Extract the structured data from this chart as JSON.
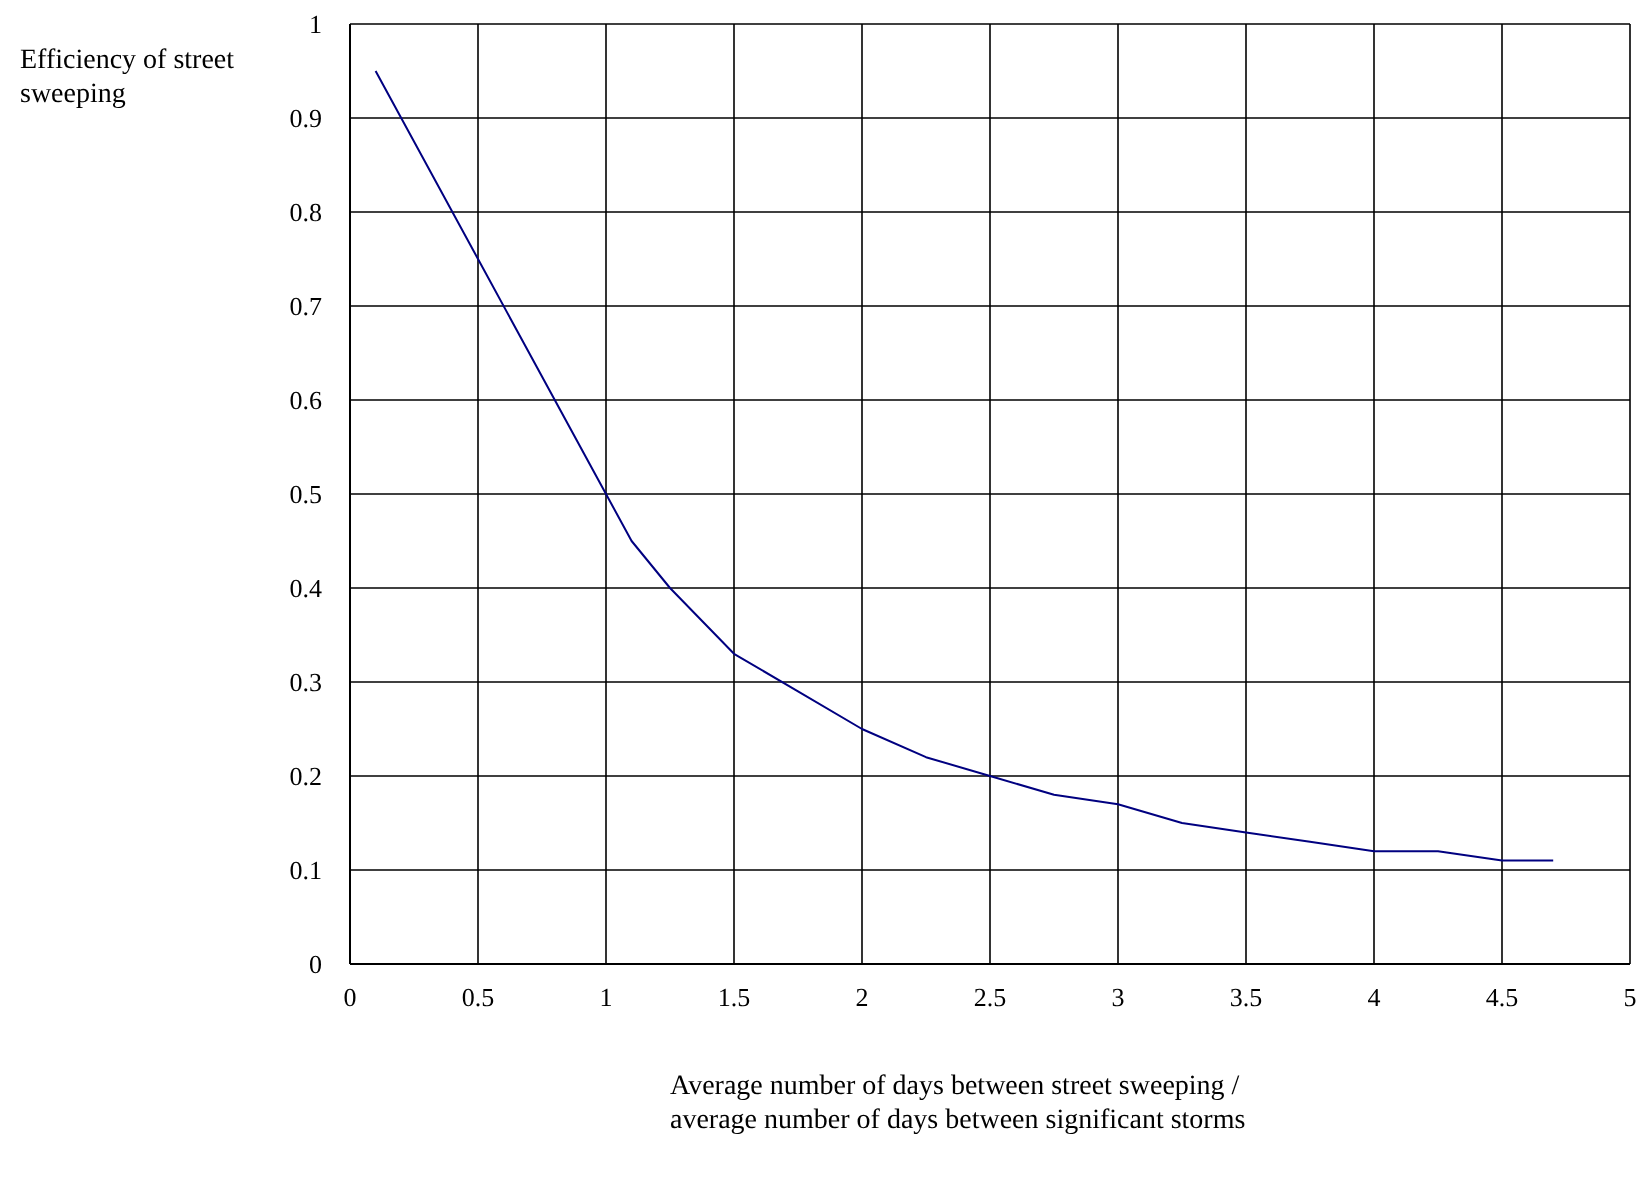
{
  "chart_data": {
    "type": "line",
    "xlabel": "Average number of days between street sweeping / average number of days between significant storms",
    "ylabel": "Efficiency of street sweeping",
    "series": [
      {
        "color": "#000080",
        "x": [
          0.1,
          0.5,
          1.0,
          1.1,
          1.25,
          1.5,
          1.75,
          2.0,
          2.25,
          2.5,
          2.75,
          3.0,
          3.25,
          3.5,
          3.75,
          4.0,
          4.25,
          4.5,
          4.7
        ],
        "values": [
          0.95,
          0.75,
          0.5,
          0.45,
          0.4,
          0.33,
          0.29,
          0.25,
          0.22,
          0.2,
          0.18,
          0.17,
          0.15,
          0.14,
          0.13,
          0.12,
          0.12,
          0.11,
          0.11
        ]
      }
    ],
    "xlim": [
      0,
      5
    ],
    "xticks": [
      0,
      0.5,
      1,
      1.5,
      2,
      2.5,
      3,
      3.5,
      4,
      4.5,
      5
    ],
    "ylim": [
      0,
      1
    ],
    "yticks": [
      0,
      0.1,
      0.2,
      0.3,
      0.4,
      0.5,
      0.6,
      0.7,
      0.8,
      0.9,
      1
    ],
    "grid": true,
    "marker": "none",
    "line_style": "solid"
  }
}
